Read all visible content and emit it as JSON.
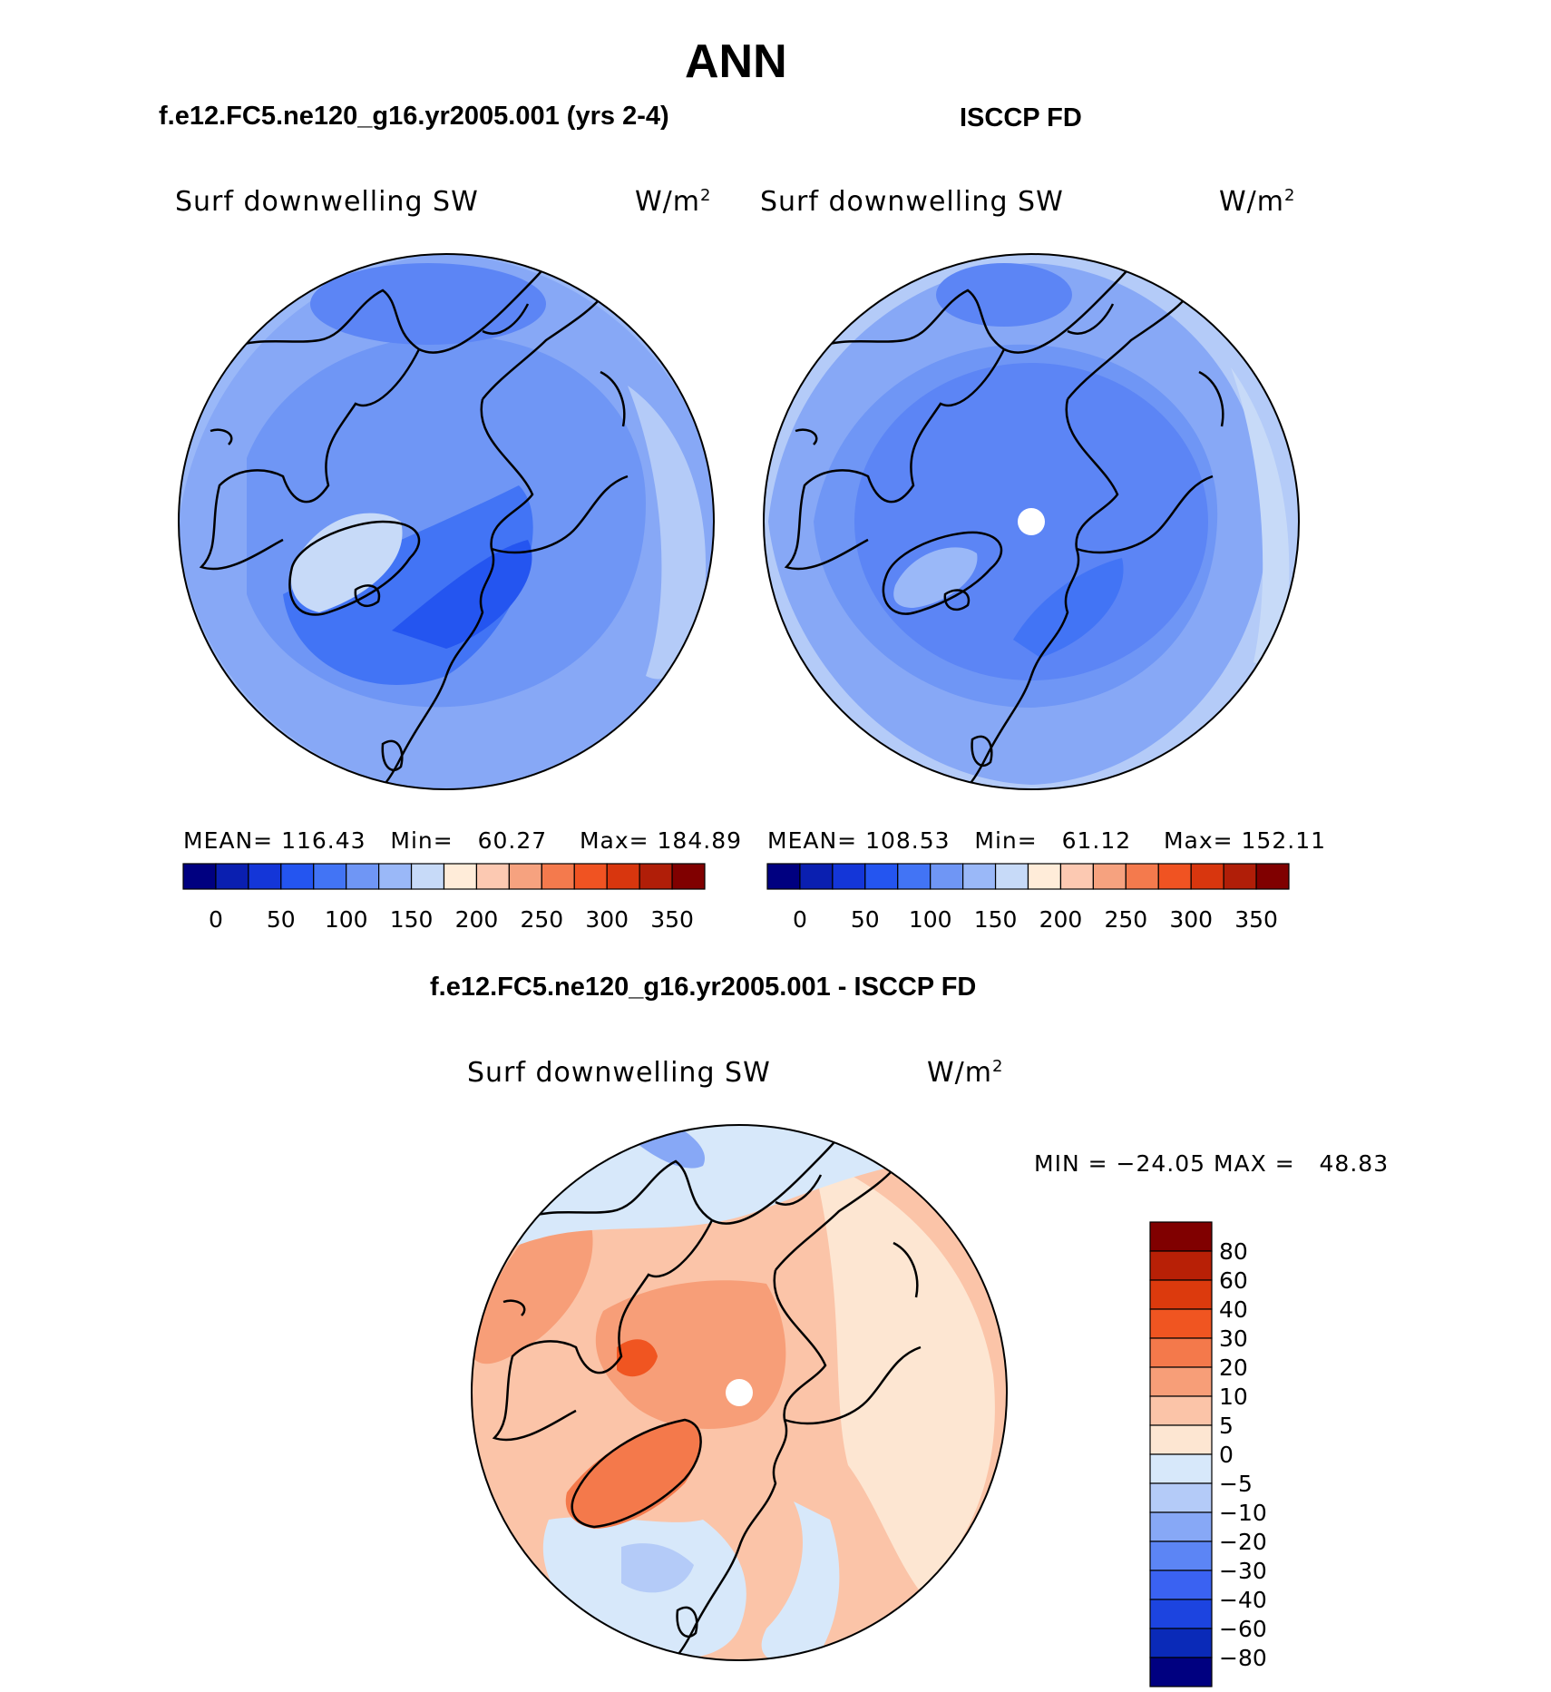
{
  "figure": {
    "title": "ANN"
  },
  "panels": [
    {
      "id": "model",
      "case_title": "f.e12.FC5.ne120_g16.yr2005.001 (yrs 2-4)",
      "variable": "Surf downwelling SW",
      "units": "W/m",
      "units_sup": "2",
      "stats": {
        "mean_label": "MEAN=",
        "mean": "116.43",
        "min_label": "Min=",
        "min": "60.27",
        "max_label": "Max=",
        "max": "184.89"
      }
    },
    {
      "id": "obs",
      "case_title": "ISCCP FD",
      "variable": "Surf downwelling SW",
      "units": "W/m",
      "units_sup": "2",
      "stats": {
        "mean_label": "MEAN=",
        "mean": "108.53",
        "min_label": "Min=",
        "min": "61.12",
        "max_label": "Max=",
        "max": "152.11"
      }
    },
    {
      "id": "diff",
      "case_title": "f.e12.FC5.ne120_g16.yr2005.001 - ISCCP FD",
      "variable": "Surf downwelling SW",
      "units": "W/m",
      "units_sup": "2",
      "stats": {
        "min_label": "MIN =",
        "min": "−24.05",
        "max_label": "MAX =",
        "max": "48.83"
      }
    }
  ],
  "colorbars": {
    "absolute": {
      "colors": [
        "#000080",
        "#0a1fb0",
        "#1436d8",
        "#2455f0",
        "#4274f5",
        "#6f96f5",
        "#9ab8f8",
        "#c7daf8",
        "#ffecd9",
        "#fcc9b2",
        "#f6a27f",
        "#f47a4d",
        "#f05322",
        "#d8360e",
        "#b01e08",
        "#800000"
      ],
      "tick_labels": [
        "0",
        "50",
        "100",
        "150",
        "200",
        "250",
        "300",
        "350"
      ]
    },
    "difference": {
      "colors": [
        "#000080",
        "#0a2ab8",
        "#1c44e0",
        "#3a62f2",
        "#5c85f5",
        "#87a8f6",
        "#b4cbf8",
        "#d7e8fa",
        "#fde6d2",
        "#fbc4a8",
        "#f79e78",
        "#f4794b",
        "#f05521",
        "#dc3a0d",
        "#b82006",
        "#800000"
      ],
      "tick_labels": [
        "80",
        "60",
        "40",
        "30",
        "20",
        "10",
        "5",
        "0",
        "−5",
        "−10",
        "−20",
        "−30",
        "−40",
        "−60",
        "−80"
      ]
    }
  },
  "maps": {
    "model": {
      "level_values": [
        116,
        100,
        130,
        150,
        175
      ],
      "notes": ""
    },
    "obs": {
      "level_values": [
        108,
        100,
        130,
        150
      ],
      "notes": ""
    },
    "diff": {
      "level_values": [
        10,
        20,
        30,
        5,
        -5,
        -10
      ],
      "notes": ""
    }
  }
}
